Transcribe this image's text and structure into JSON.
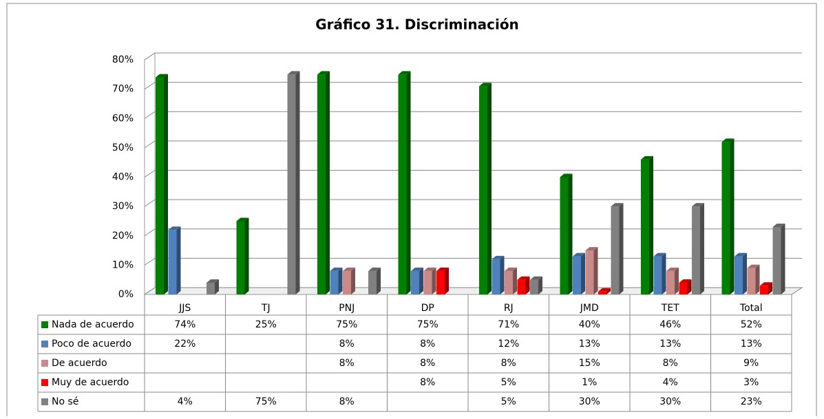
{
  "chart_data": {
    "type": "bar",
    "title": "Gráfico 31. Discriminación",
    "categories": [
      "JJS",
      "TJ",
      "PNJ",
      "DP",
      "RJ",
      "JMD",
      "TET",
      "Total"
    ],
    "series": [
      {
        "name": "Nada de acuerdo",
        "color": "#008000",
        "values": [
          74,
          25,
          75,
          75,
          71,
          40,
          46,
          52
        ],
        "value_labels": [
          "74%",
          "25%",
          "75%",
          "75%",
          "71%",
          "40%",
          "46%",
          "52%"
        ]
      },
      {
        "name": "Poco de acuerdo",
        "color": "#4f81bd",
        "values": [
          22,
          null,
          8,
          8,
          12,
          13,
          13,
          13
        ],
        "value_labels": [
          "22%",
          null,
          "8%",
          "8%",
          "12%",
          "13%",
          "13%",
          "13%"
        ]
      },
      {
        "name": "De acuerdo",
        "color": "#c98a88",
        "values": [
          null,
          null,
          8,
          8,
          8,
          15,
          8,
          9
        ],
        "value_labels": [
          null,
          null,
          "8%",
          "8%",
          "8%",
          "15%",
          "8%",
          "9%"
        ]
      },
      {
        "name": "Muy de acuerdo",
        "color": "#ff0000",
        "values": [
          null,
          null,
          null,
          8,
          5,
          1,
          4,
          3
        ],
        "value_labels": [
          null,
          null,
          null,
          "8%",
          "5%",
          "1%",
          "4%",
          "3%"
        ]
      },
      {
        "name": "No sé",
        "color": "#808080",
        "values": [
          4,
          75,
          8,
          null,
          5,
          30,
          30,
          23
        ],
        "value_labels": [
          "4%",
          "75%",
          "8%",
          null,
          "5%",
          "30%",
          "30%",
          "23%"
        ]
      }
    ],
    "ylim": [
      0,
      80
    ],
    "yticks": [
      {
        "value": 0,
        "label": "0%"
      },
      {
        "value": 10,
        "label": "10%"
      },
      {
        "value": 20,
        "label": "20%"
      },
      {
        "value": 30,
        "label": "30%"
      },
      {
        "value": 40,
        "label": "40%"
      },
      {
        "value": 50,
        "label": "50%"
      },
      {
        "value": 60,
        "label": "60%"
      },
      {
        "value": 70,
        "label": "70%"
      },
      {
        "value": 80,
        "label": "80%"
      }
    ],
    "grid": true
  }
}
